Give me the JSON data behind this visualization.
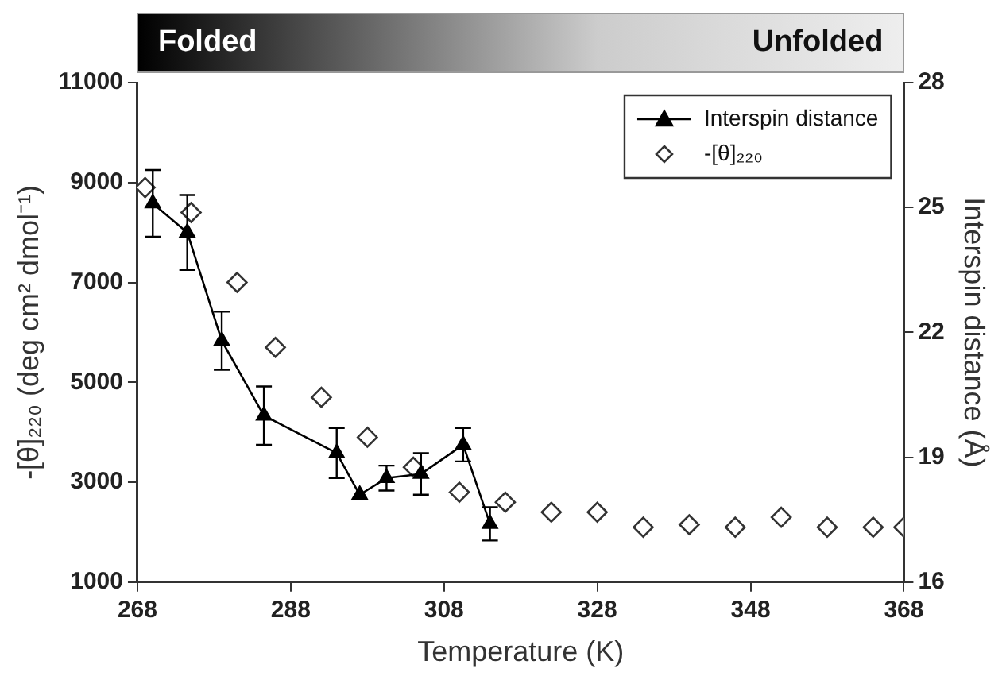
{
  "chart_data": {
    "type": "scatter",
    "xlabel": "Temperature (K)",
    "ylabel": "-[θ]₂₂₀ (deg cm² dmol⁻¹)",
    "y2label": "Interspin distance (Å)",
    "xlim": [
      268,
      368
    ],
    "xticks": [
      268,
      288,
      308,
      328,
      348,
      368
    ],
    "ylim": [
      1000,
      11000
    ],
    "yticks": [
      1000,
      3000,
      5000,
      7000,
      9000,
      11000
    ],
    "y2lim": [
      16,
      28
    ],
    "y2ticks": [
      16,
      19,
      22,
      25,
      28
    ],
    "legend": "top right",
    "annotations": [
      "Folded",
      "Unfolded"
    ],
    "series": [
      {
        "name": "Interspin distance",
        "type": "line",
        "axis": "y2",
        "marker": "triangle",
        "line_style": "solid",
        "color": "#000000",
        "x": [
          270,
          274.5,
          279,
          284.5,
          294,
          297,
          300.5,
          305,
          310.5,
          314
        ],
        "values": [
          25.1,
          24.4,
          21.8,
          20.0,
          19.1,
          18.1,
          18.5,
          18.6,
          19.3,
          17.4
        ],
        "errors": [
          0.8,
          0.9,
          0.7,
          0.7,
          0.6,
          null,
          0.3,
          0.5,
          0.4,
          0.4
        ]
      },
      {
        "name": "-[θ]₂₂₀",
        "type": "scatter",
        "marker": "diamond",
        "color": "#333333",
        "x": [
          269,
          275,
          281,
          286,
          292,
          298,
          304,
          310,
          316,
          322,
          328,
          334,
          340,
          346,
          352,
          358,
          364,
          368
        ],
        "values": [
          8900,
          8400,
          7000,
          5700,
          4700,
          3900,
          3300,
          2800,
          2600,
          2400,
          2400,
          2100,
          2150,
          2100,
          2300,
          2100,
          2100,
          2100
        ]
      }
    ]
  }
}
